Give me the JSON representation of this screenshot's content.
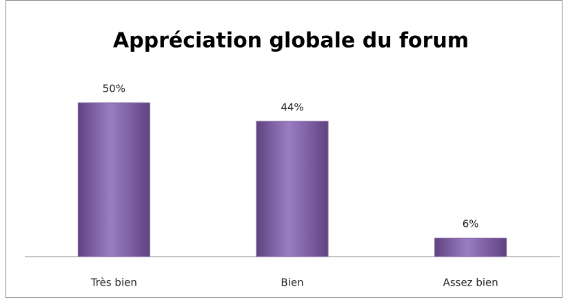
{
  "chart_data": {
    "type": "bar",
    "title": "Appréciation globale du forum",
    "categories": [
      "Très bien",
      "Bien",
      "Assez bien"
    ],
    "values": [
      50,
      44,
      6
    ],
    "value_labels": [
      "50%",
      "44%",
      "6%"
    ],
    "color": "#8064a2"
  }
}
